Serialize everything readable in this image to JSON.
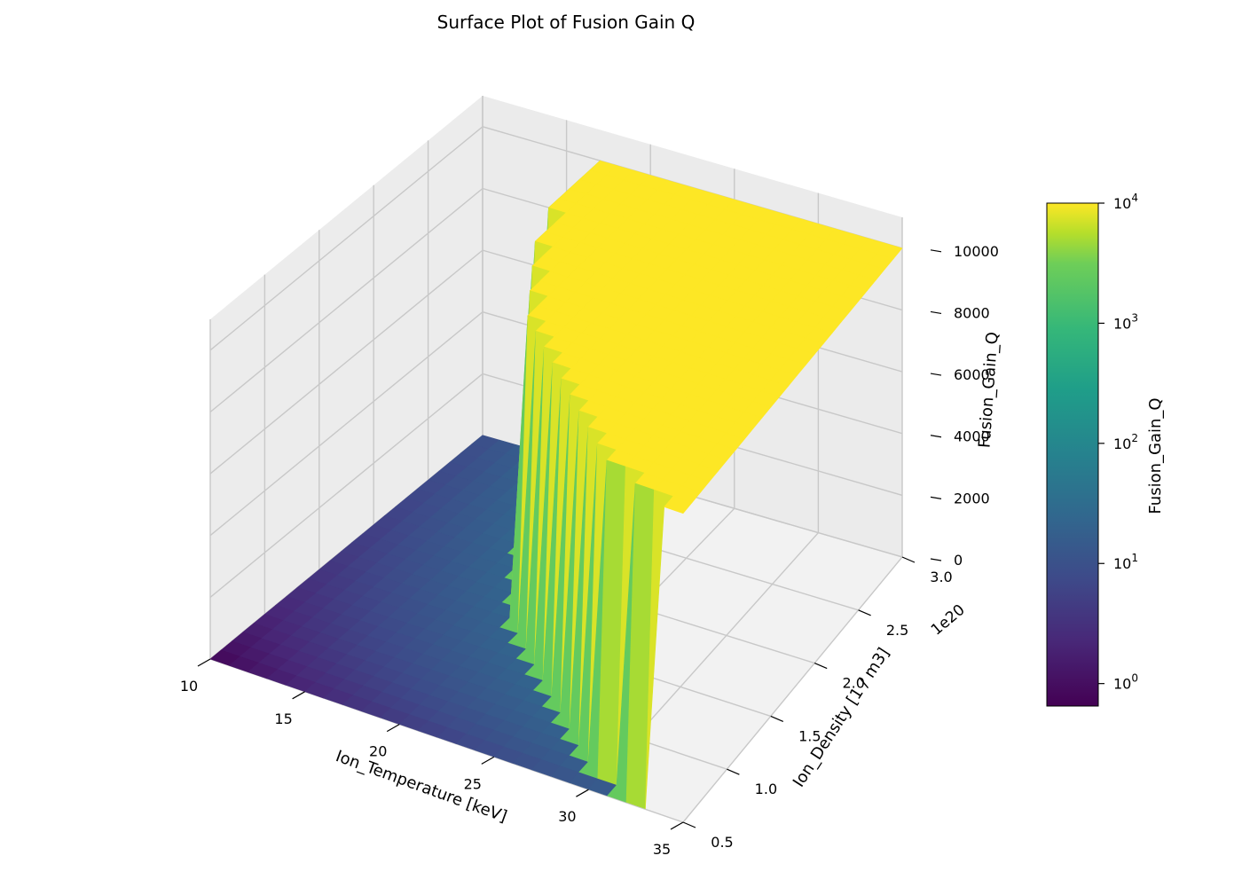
{
  "chart_data": {
    "type": "surface",
    "title": "Surface Plot of Fusion Gain Q",
    "xlabel": "Ion_Temperature [keV]",
    "ylabel": "Ion_Density [1 / m3]",
    "zlabel": "Fusion_Gain_Q",
    "y_offset_label": "1e20",
    "xlim": [
      10,
      35
    ],
    "ylim": [
      5e+19,
      3e+20
    ],
    "zlim": [
      0,
      11000
    ],
    "x_ticks": [
      "10",
      "15",
      "20",
      "25",
      "30",
      "35"
    ],
    "y_ticks": [
      "0.5",
      "1.0",
      "1.5",
      "2.0",
      "2.5",
      "3.0"
    ],
    "z_ticks": [
      "0",
      "2000",
      "4000",
      "6000",
      "8000",
      "10000"
    ],
    "x": [
      10,
      11,
      12,
      13,
      14,
      15,
      16,
      17,
      18,
      19,
      20,
      21,
      22,
      23,
      24,
      25,
      26,
      27,
      28,
      29,
      30,
      31,
      32,
      33,
      34,
      35
    ],
    "y": [
      5e+19,
      6e+19,
      7e+19,
      8e+19,
      9e+19,
      1e+20,
      1.1e+20,
      1.2e+20,
      1.3e+20,
      1.4e+20,
      1.5e+20,
      1.6e+20,
      1.7e+20,
      1.8e+20,
      1.9e+20,
      2e+20,
      2.1e+20,
      2.2e+20,
      2.3e+20,
      2.4e+20,
      2.5e+20,
      2.6e+20,
      2.7e+20,
      2.8e+20,
      2.9e+20,
      3e+20
    ],
    "z_cap": 10000,
    "ignition_boundary_temperature": [
      34,
      32,
      30,
      29,
      28,
      27,
      26,
      25,
      24,
      23,
      22,
      21,
      21,
      20,
      20,
      19,
      19,
      18,
      18,
      18,
      17,
      17,
      17,
      17,
      17,
      17
    ],
    "colorbar": {
      "label": "Fusion_Gain_Q",
      "scale": "log",
      "range": [
        0.65,
        10000
      ],
      "tick_values": [
        1,
        10,
        100,
        1000,
        10000
      ],
      "tick_labels": [
        "10^0",
        "10^1",
        "10^2",
        "10^3",
        "10^4"
      ],
      "colormap": "viridis"
    },
    "grid": true
  }
}
